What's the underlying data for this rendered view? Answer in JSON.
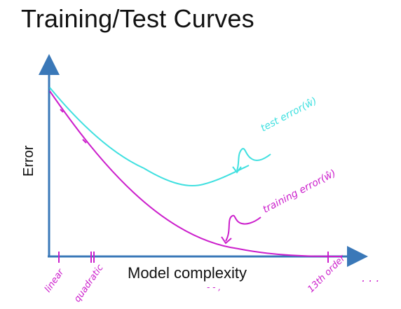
{
  "slide": {
    "title": "Training/Test Curves"
  },
  "axes": {
    "ylabel": "Error",
    "xlabel": "Model complexity"
  },
  "annotations": {
    "test_curve_label": "test error(ŵ)",
    "training_curve_label": "training error(ŵ)",
    "tick_linear": "linear",
    "tick_quadratic": "quadratic",
    "tick_13th": "13th order",
    "ellipsis": ". . ."
  },
  "colors": {
    "axis": "#3a78b8",
    "test_curve": "#40e0e0",
    "training_curve": "#cc1fcc",
    "text": "#111111"
  }
}
